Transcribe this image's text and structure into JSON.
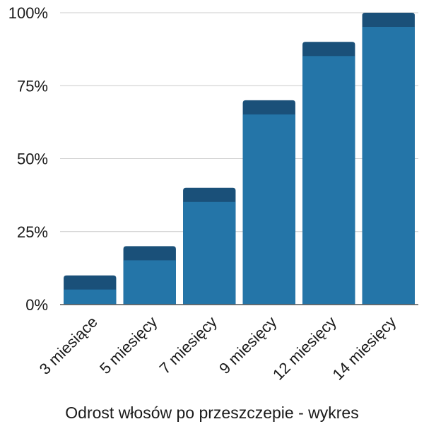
{
  "chart_data": {
    "type": "bar",
    "title": "",
    "xlabel": "Odrost włosów po przeszczepie - wykres",
    "ylabel": "",
    "categories": [
      "3 miesiące",
      "5 miesięcy",
      "7 miesięcy",
      "9 miesięcy",
      "12 miesięcy",
      "14 miesięcy"
    ],
    "values": [
      10,
      20,
      40,
      70,
      90,
      100
    ],
    "ylim": [
      0,
      100
    ],
    "yticks": [
      0,
      25,
      50,
      75,
      100
    ],
    "ytick_labels": [
      "0%",
      "25%",
      "50%",
      "75%",
      "100%"
    ],
    "grid": true,
    "legend": "none",
    "colors": {
      "bar": "#2475a8",
      "bar_cap": "#1a5079",
      "grid": "#cccccc",
      "axis": "#555555"
    }
  }
}
